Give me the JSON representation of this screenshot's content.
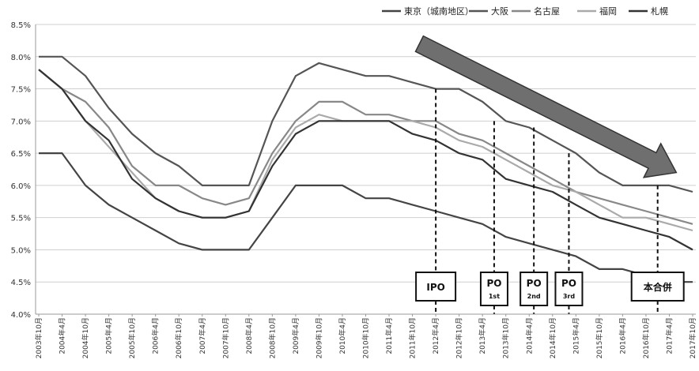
{
  "chart_data": {
    "type": "line",
    "title": "",
    "xlabel": "",
    "ylabel": "",
    "ylim": [
      4.0,
      8.5
    ],
    "y_ticks": [
      "4.0%",
      "4.5%",
      "5.0%",
      "5.5%",
      "6.0%",
      "6.5%",
      "7.0%",
      "7.5%",
      "8.0%",
      "8.5%"
    ],
    "grid": "horizontal",
    "legend_position": "top-right",
    "categories": [
      "2003年10月",
      "2004年4月",
      "2004年10月",
      "2005年4月",
      "2005年10月",
      "2006年4月",
      "2006年10月",
      "2007年4月",
      "2007年10月",
      "2008年4月",
      "2008年10月",
      "2009年4月",
      "2009年10月",
      "2010年4月",
      "2010年10月",
      "2011年4月",
      "2011年10月",
      "2012年4月",
      "2012年10月",
      "2013年4月",
      "2013年10月",
      "2014年4月",
      "2014年10月",
      "2015年4月",
      "2015年10月",
      "2016年4月",
      "2016年10月",
      "2017年4月",
      "2017年10月"
    ],
    "series": [
      {
        "name": "東京（城南地区）",
        "color": "#444444",
        "values": [
          6.5,
          6.5,
          6.0,
          5.7,
          5.5,
          5.3,
          5.1,
          5.0,
          5.0,
          5.0,
          5.5,
          6.0,
          6.0,
          6.0,
          5.8,
          5.8,
          5.7,
          5.6,
          5.5,
          5.4,
          5.2,
          5.1,
          5.0,
          4.9,
          4.7,
          4.7,
          4.6,
          4.5,
          4.5
        ]
      },
      {
        "name": "大阪",
        "color": "#555555",
        "values": [
          8.0,
          8.0,
          7.7,
          7.2,
          6.8,
          6.5,
          6.3,
          6.0,
          6.0,
          6.0,
          7.0,
          7.7,
          7.9,
          7.8,
          7.7,
          7.7,
          7.6,
          7.5,
          7.5,
          7.3,
          7.0,
          6.9,
          6.7,
          6.5,
          6.2,
          6.0,
          6.0,
          6.0,
          5.9
        ]
      },
      {
        "name": "名古屋",
        "color": "#888888",
        "values": [
          7.8,
          7.5,
          7.3,
          6.9,
          6.3,
          6.0,
          6.0,
          5.8,
          5.7,
          5.8,
          6.5,
          7.0,
          7.3,
          7.3,
          7.1,
          7.1,
          7.0,
          7.0,
          6.8,
          6.7,
          6.5,
          6.3,
          6.1,
          5.9,
          5.8,
          5.7,
          5.6,
          5.5,
          5.4
        ]
      },
      {
        "name": "福岡",
        "color": "#aaaaaa",
        "values": [
          7.8,
          7.5,
          7.0,
          6.6,
          6.2,
          5.8,
          5.6,
          5.5,
          5.5,
          5.6,
          6.4,
          6.9,
          7.1,
          7.0,
          7.0,
          7.0,
          7.0,
          6.9,
          6.7,
          6.6,
          6.4,
          6.2,
          6.0,
          5.9,
          5.7,
          5.5,
          5.5,
          5.4,
          5.3
        ]
      },
      {
        "name": "札幌",
        "color": "#333333",
        "values": [
          7.8,
          7.5,
          7.0,
          6.7,
          6.1,
          5.8,
          5.6,
          5.5,
          5.5,
          5.6,
          6.3,
          6.8,
          7.0,
          7.0,
          7.0,
          7.0,
          6.8,
          6.7,
          6.5,
          6.4,
          6.1,
          6.0,
          5.9,
          5.7,
          5.5,
          5.4,
          5.3,
          5.2,
          5.0
        ]
      }
    ],
    "annotations": [
      {
        "label": "IPO",
        "sub": "",
        "x_index": 17
      },
      {
        "label": "PO",
        "sub": "1st",
        "x_index": 19.5
      },
      {
        "label": "PO",
        "sub": "2nd",
        "x_index": 21.2
      },
      {
        "label": "PO",
        "sub": "3rd",
        "x_index": 22.7
      },
      {
        "label": "本合併",
        "sub": "",
        "x_index": 26.5
      }
    ],
    "trend_arrow": {
      "from": [
        16.3,
        8.2
      ],
      "to": [
        27.3,
        6.2
      ],
      "color": "#6f6f6f"
    }
  }
}
